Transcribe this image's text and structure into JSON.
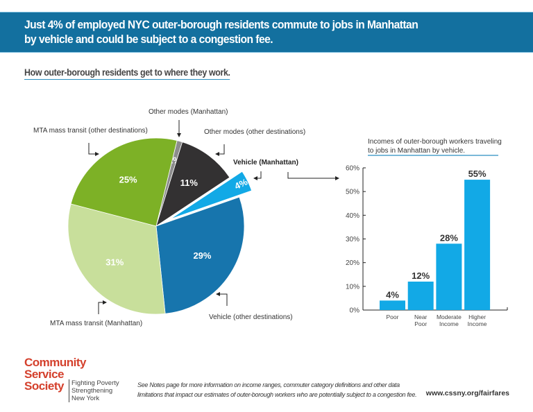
{
  "header": {
    "title_line1": "Just 4% of employed NYC outer-borough residents commute to jobs in Manhattan",
    "title_line2": "by vehicle and could be subject to a congestion fee."
  },
  "subtitle": "How outer-borough residents get to where they work.",
  "chart_data": [
    {
      "type": "pie",
      "slices": [
        {
          "name": "Other modes (Manhattan)",
          "value": 1,
          "label": "1%",
          "color": "#8c8c8c"
        },
        {
          "name": "Other modes (other destinations)",
          "value": 11,
          "label": "11%",
          "color": "#333132"
        },
        {
          "name": "Vehicle (Manhattan)",
          "value": 4,
          "label": "4%",
          "color": "#12a9e6",
          "exploded": true
        },
        {
          "name": "Vehicle (other destinations)",
          "value": 29,
          "label": "29%",
          "color": "#1775ad"
        },
        {
          "name": "MTA mass transit (Manhattan)",
          "value": 31,
          "label": "31%",
          "color": "#c8df9b"
        },
        {
          "name": "MTA mass transit (other destinations)",
          "value": 25,
          "label": "25%",
          "color": "#7db126"
        }
      ]
    },
    {
      "type": "bar",
      "title": "Incomes of outer-borough workers traveling to jobs in Manhattan by vehicle.",
      "title_line1": "Incomes of outer-borough workers traveling",
      "title_line2": "to jobs in Manhattan by vehicle.",
      "categories": [
        [
          "Poor"
        ],
        [
          "Near",
          "Poor"
        ],
        [
          "Moderate",
          "Income"
        ],
        [
          "Higher",
          "Income"
        ]
      ],
      "values": [
        4,
        12,
        28,
        55
      ],
      "data_labels": [
        "4%",
        "12%",
        "28%",
        "55%"
      ],
      "ylim": [
        0,
        60
      ],
      "yticks": [
        "0%",
        "10%",
        "20%",
        "30%",
        "40%",
        "50%",
        "60%"
      ],
      "color": "#12a9e6"
    }
  ],
  "footer": {
    "logo": [
      "Community",
      "Service",
      "Society"
    ],
    "tagline": [
      "Fighting Poverty",
      "Strengthening",
      "New York"
    ],
    "note_line1": "See Notes page for more information on income ranges, commuter category definitions and other data",
    "note_line2": "limitations that impact our estimates of outer-borough workers who are potentially subject to a congestion fee.",
    "url": "www.cssny.org/fairfares"
  }
}
